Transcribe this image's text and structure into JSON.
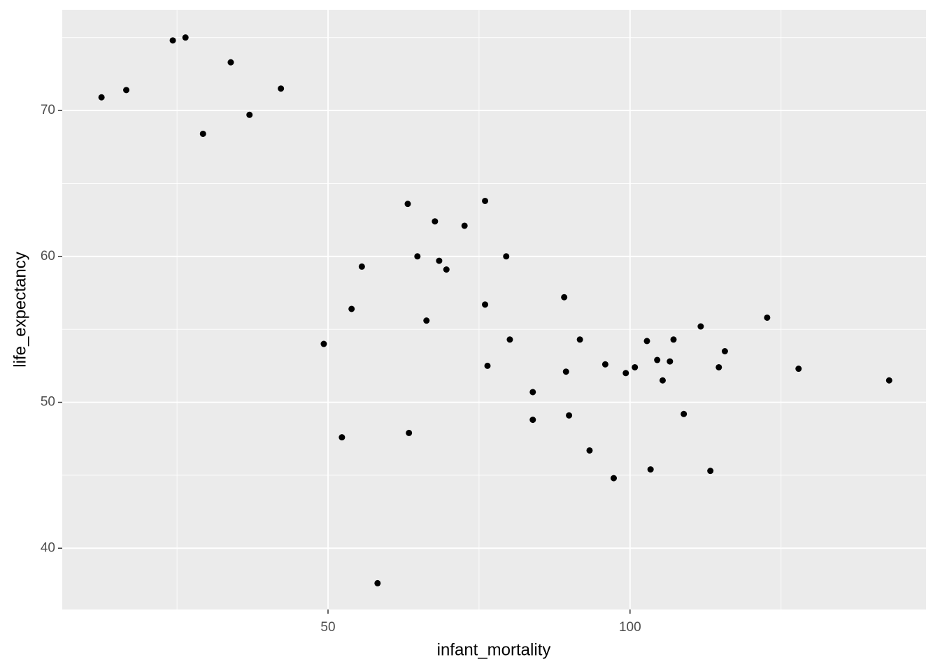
{
  "chart_data": {
    "type": "scatter",
    "x_label": "infant_mortality",
    "y_label": "life_expectancy",
    "x": [
      12.5,
      16.6,
      24.3,
      26.4,
      29.3,
      33.9,
      37.0,
      42.2,
      49.3,
      52.3,
      53.9,
      55.6,
      58.2,
      63.2,
      63.4,
      64.8,
      66.3,
      67.7,
      68.4,
      69.6,
      72.6,
      76.0,
      76.0,
      76.4,
      79.5,
      80.1,
      83.9,
      83.9,
      89.1,
      89.4,
      89.9,
      91.7,
      93.3,
      95.9,
      97.3,
      99.3,
      100.8,
      102.8,
      103.4,
      104.5,
      105.4,
      106.6,
      107.2,
      108.9,
      111.7,
      113.3,
      114.7,
      115.7,
      122.7,
      127.9,
      142.9
    ],
    "values": [
      70.9,
      71.4,
      74.8,
      75.0,
      68.4,
      73.3,
      69.7,
      71.5,
      54.0,
      47.6,
      56.4,
      59.3,
      37.6,
      63.6,
      47.9,
      60.0,
      55.6,
      62.4,
      59.7,
      59.1,
      62.1,
      63.8,
      56.7,
      52.5,
      60.0,
      54.3,
      50.7,
      48.8,
      57.2,
      52.1,
      49.1,
      54.3,
      46.7,
      52.6,
      44.8,
      52.0,
      52.4,
      54.2,
      45.4,
      52.9,
      51.5,
      52.8,
      54.3,
      49.2,
      55.2,
      45.3,
      52.4,
      53.5,
      55.8,
      52.3,
      51.5
    ],
    "color": "#000000",
    "xlim": [
      6.0,
      149.0
    ],
    "ylim": [
      35.8,
      76.9
    ],
    "xticks": [
      50,
      100
    ],
    "yticks": [
      40,
      50,
      60,
      70
    ],
    "xminor": [
      25,
      75,
      125
    ],
    "yminor": [
      45,
      55,
      65,
      75
    ],
    "grid": true
  }
}
